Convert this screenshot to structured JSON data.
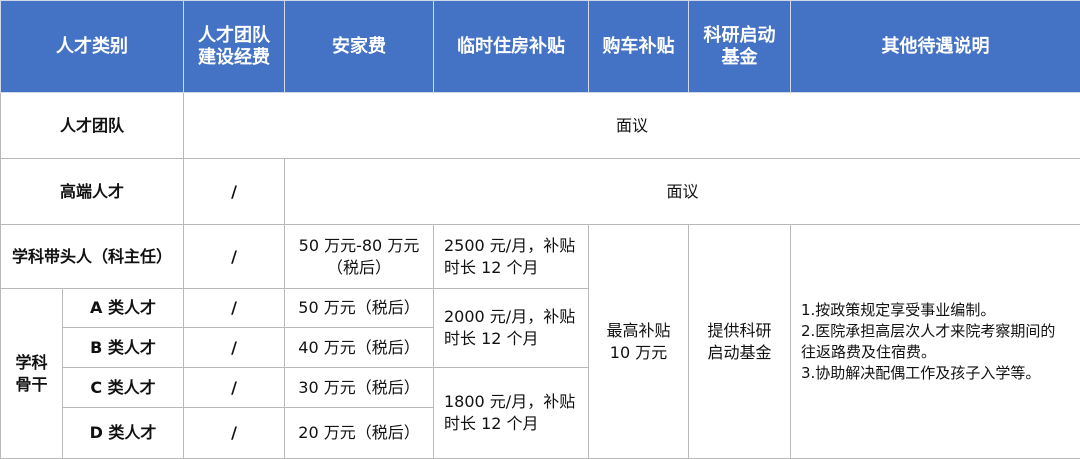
{
  "header": {
    "category": "人才类别",
    "team_funding": "人才团队\n建设经费",
    "settlement": "安家费",
    "housing": "临时住房补贴",
    "car": "购车补贴",
    "research": "科研启动\n基金",
    "other": "其他待遇说明"
  },
  "colors": {
    "header_bg": "#4472c4",
    "header_text": "#ffffff"
  },
  "rows": {
    "team": {
      "label": "人才团队",
      "value": "面议"
    },
    "high_end": {
      "label": "高端人才",
      "team_funding": "/",
      "value": "面议"
    },
    "leader": {
      "label": "学科带头人（科主任）",
      "team_funding": "/",
      "settlement": "50 万元-80 万元\n（税后）",
      "housing": "2500 元/月，补贴\n时长 12 个月"
    },
    "backbone": {
      "label": "学科\n骨干",
      "items": [
        {
          "label": "A 类人才",
          "team_funding": "/",
          "settlement": "50 万元（税后）"
        },
        {
          "label": "B 类人才",
          "team_funding": "/",
          "settlement": "40 万元（税后）"
        },
        {
          "label": "C 类人才",
          "team_funding": "/",
          "settlement": "30 万元（税后）"
        },
        {
          "label": "D 类人才",
          "team_funding": "/",
          "settlement": "20 万元（税后）"
        }
      ],
      "housing_ab": "2000 元/月，补贴\n时长 12 个月",
      "housing_cd": "1800 元/月，补贴\n时长 12 个月"
    },
    "car": "最高补贴\n10 万元",
    "research": "提供科研\n启动基金",
    "other_notes": "1.按政策规定享受事业编制。\n2.医院承担高层次人才来院考察期间的往返路费及住宿费。\n3.协助解决配偶工作及孩子入学等。"
  }
}
